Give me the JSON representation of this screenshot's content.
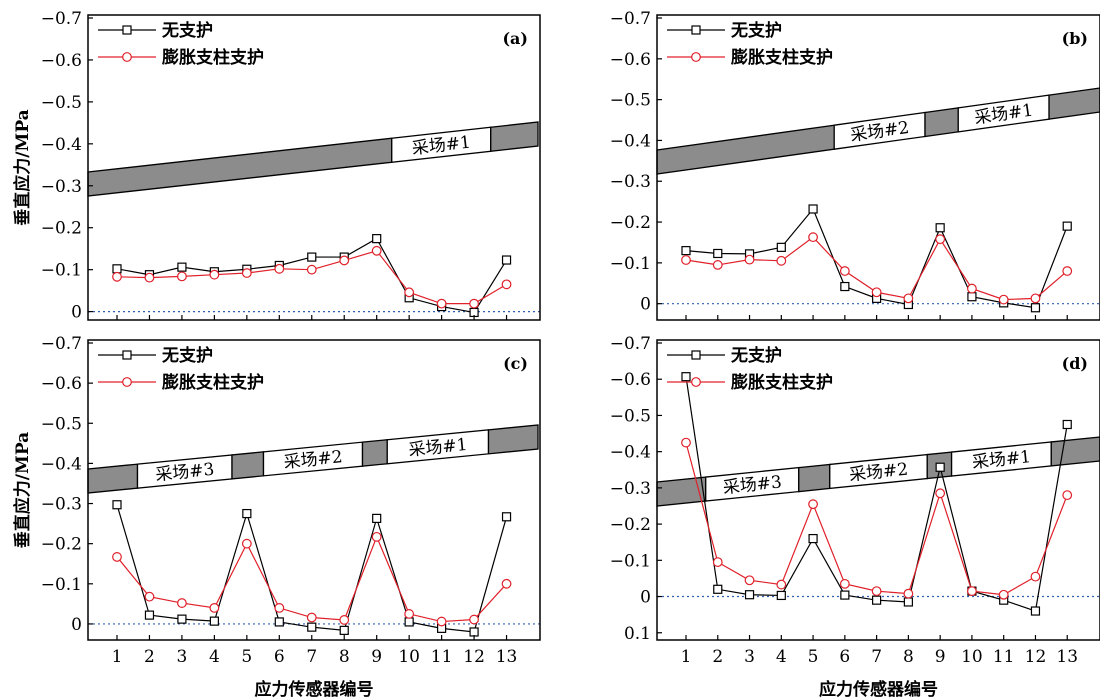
{
  "chart_data": [
    {
      "type": "line",
      "panel_label": "(a)",
      "categories": [
        "1",
        "2",
        "3",
        "4",
        "5",
        "6",
        "7",
        "8",
        "9",
        "10",
        "11",
        "12",
        "13"
      ],
      "series": [
        {
          "name": "无支护",
          "color": "#000000",
          "marker": "square",
          "values": [
            -0.102,
            -0.088,
            -0.106,
            -0.095,
            -0.101,
            -0.11,
            -0.13,
            -0.13,
            -0.174,
            -0.033,
            -0.012,
            0.002,
            -0.123
          ]
        },
        {
          "name": "膨胀支柱支护",
          "color": "#e0202a",
          "marker": "circle",
          "values": [
            -0.083,
            -0.081,
            -0.084,
            -0.088,
            -0.092,
            -0.102,
            -0.1,
            -0.122,
            -0.145,
            -0.046,
            -0.019,
            -0.019,
            -0.065
          ]
        }
      ],
      "yticks": [
        "-0.7",
        "-0.6",
        "-0.5",
        "-0.4",
        "-0.3",
        "-0.2",
        "-0.1",
        "0"
      ],
      "ylim": [
        -0.7,
        0.02
      ],
      "ylabel": "垂直应力/MPa",
      "xlabel": "",
      "stope_labels": [
        "采场#1"
      ]
    },
    {
      "type": "line",
      "panel_label": "(b)",
      "categories": [
        "1",
        "2",
        "3",
        "4",
        "5",
        "6",
        "7",
        "8",
        "9",
        "10",
        "11",
        "12",
        "13"
      ],
      "series": [
        {
          "name": "无支护",
          "color": "#000000",
          "marker": "square",
          "values": [
            -0.13,
            -0.123,
            -0.122,
            -0.138,
            -0.232,
            -0.042,
            -0.013,
            0.002,
            -0.186,
            -0.017,
            -0.002,
            0.01,
            -0.19
          ]
        },
        {
          "name": "膨胀支柱支护",
          "color": "#e0202a",
          "marker": "circle",
          "values": [
            -0.107,
            -0.095,
            -0.108,
            -0.105,
            -0.163,
            -0.08,
            -0.028,
            -0.013,
            -0.158,
            -0.037,
            -0.01,
            -0.013,
            -0.08
          ]
        }
      ],
      "yticks": [
        "-0.7",
        "-0.6",
        "-0.5",
        "-0.4",
        "-0.3",
        "-0.2",
        "-0.1",
        "0"
      ],
      "ylim": [
        -0.7,
        0.04
      ],
      "ylabel": "",
      "xlabel": "",
      "stope_labels": [
        "采场#2",
        "采场#1"
      ]
    },
    {
      "type": "line",
      "panel_label": "(c)",
      "categories": [
        "1",
        "2",
        "3",
        "4",
        "5",
        "6",
        "7",
        "8",
        "9",
        "10",
        "11",
        "12",
        "13"
      ],
      "series": [
        {
          "name": "无支护",
          "color": "#000000",
          "marker": "square",
          "values": [
            -0.297,
            -0.022,
            -0.012,
            -0.007,
            -0.275,
            -0.005,
            0.008,
            0.016,
            -0.263,
            -0.005,
            0.011,
            0.02,
            -0.267
          ]
        },
        {
          "name": "膨胀支柱支护",
          "color": "#e0202a",
          "marker": "circle",
          "values": [
            -0.167,
            -0.068,
            -0.052,
            -0.04,
            -0.2,
            -0.04,
            -0.016,
            -0.01,
            -0.217,
            -0.025,
            -0.006,
            -0.011,
            -0.1
          ]
        }
      ],
      "yticks": [
        "-0.7",
        "-0.6",
        "-0.5",
        "-0.4",
        "-0.3",
        "-0.2",
        "-0.1",
        "0"
      ],
      "ylim": [
        -0.7,
        0.04
      ],
      "ylabel": "垂直应力/MPa",
      "xlabel": "应力传感器编号",
      "stope_labels": [
        "采场#3",
        "采场#2",
        "采场#1"
      ]
    },
    {
      "type": "line",
      "panel_label": "(d)",
      "categories": [
        "1",
        "2",
        "3",
        "4",
        "5",
        "6",
        "7",
        "8",
        "9",
        "10",
        "11",
        "12",
        "13"
      ],
      "series": [
        {
          "name": "无支护",
          "color": "#000000",
          "marker": "square",
          "values": [
            -0.607,
            -0.02,
            -0.005,
            -0.003,
            -0.16,
            -0.004,
            0.01,
            0.015,
            -0.357,
            -0.015,
            0.01,
            0.04,
            -0.475
          ]
        },
        {
          "name": "膨胀支柱支护",
          "color": "#e0202a",
          "marker": "circle",
          "values": [
            -0.425,
            -0.095,
            -0.045,
            -0.033,
            -0.255,
            -0.035,
            -0.015,
            -0.008,
            -0.285,
            -0.015,
            -0.005,
            -0.055,
            -0.28
          ]
        }
      ],
      "yticks": [
        "-0.7",
        "-0.6",
        "-0.5",
        "-0.4",
        "-0.3",
        "-0.2",
        "-0.1",
        "0",
        "0.1"
      ],
      "ylim": [
        -0.7,
        0.12
      ],
      "ylabel": "",
      "xlabel": "应力传感器编号",
      "stope_labels": [
        "采场#3",
        "采场#2",
        "采场#1"
      ]
    }
  ]
}
